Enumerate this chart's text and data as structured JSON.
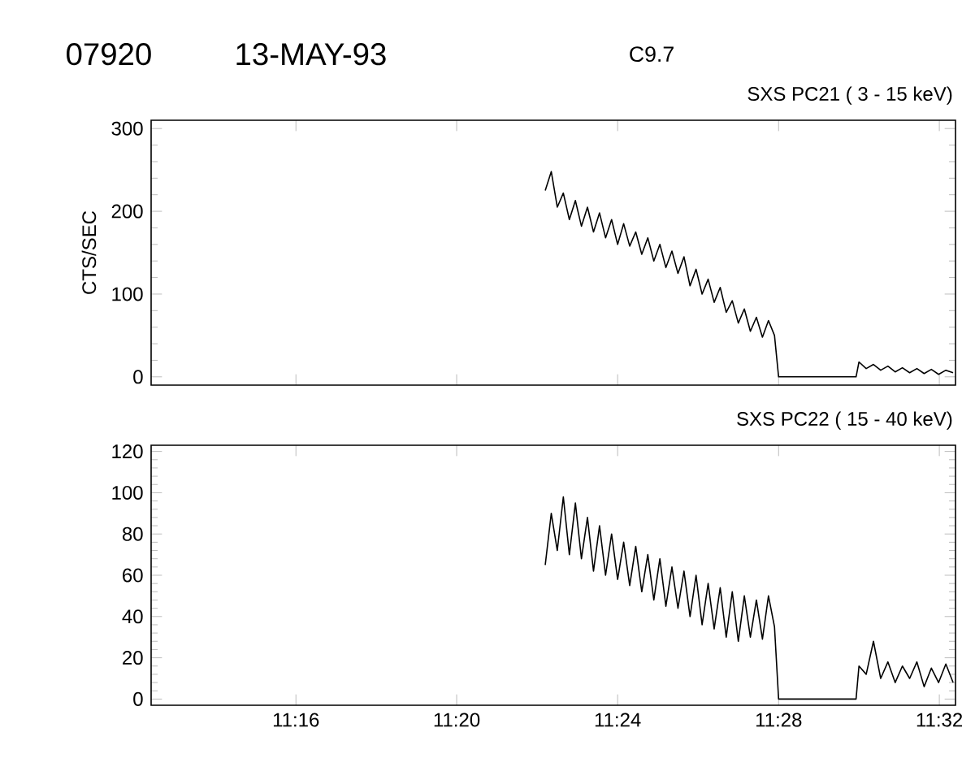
{
  "chart_data": [
    {
      "type": "line",
      "title": "SXS PC21  (  3 - 15 keV)",
      "ylabel": "CTS/SEC",
      "annotations": [
        "07920",
        "13-MAY-93",
        "C9.7"
      ],
      "xlim": [
        11.2067,
        11.54
      ],
      "ylim": [
        -10,
        310
      ],
      "xticks": [
        {
          "value": 11.2667,
          "label": null
        },
        {
          "value": 11.3333,
          "label": null
        },
        {
          "value": 11.4,
          "label": null
        },
        {
          "value": 11.4667,
          "label": null
        },
        {
          "value": 11.5333,
          "label": null
        }
      ],
      "yticks": [
        0,
        100,
        200,
        300
      ],
      "tick_labels": "y",
      "series": [
        {
          "color": "#000000",
          "x": [
            11.37,
            11.3725,
            11.375,
            11.3775,
            11.38,
            11.3825,
            11.385,
            11.3875,
            11.39,
            11.3925,
            11.395,
            11.3975,
            11.4,
            11.4025,
            11.405,
            11.4075,
            11.41,
            11.4125,
            11.415,
            11.4175,
            11.42,
            11.4225,
            11.425,
            11.4275,
            11.43,
            11.4325,
            11.435,
            11.4375,
            11.44,
            11.4425,
            11.445,
            11.4475,
            11.45,
            11.4525,
            11.455,
            11.4575,
            11.46,
            11.4625,
            11.465,
            11.4667,
            11.4988,
            11.5,
            11.503,
            11.506,
            11.509,
            11.512,
            11.515,
            11.518,
            11.521,
            11.524,
            11.527,
            11.53,
            11.533,
            11.536,
            11.539
          ],
          "values": [
            225,
            248,
            205,
            222,
            190,
            213,
            182,
            205,
            175,
            198,
            168,
            190,
            160,
            185,
            158,
            175,
            148,
            168,
            140,
            160,
            132,
            152,
            125,
            145,
            110,
            130,
            100,
            118,
            90,
            108,
            78,
            92,
            65,
            82,
            55,
            72,
            48,
            68,
            50,
            0,
            0,
            18,
            10,
            15,
            8,
            13,
            6,
            11,
            5,
            10,
            4,
            9,
            3,
            8,
            5
          ]
        }
      ]
    },
    {
      "type": "line",
      "title": "SXS PC22  ( 15 - 40 keV)",
      "xlim": [
        11.2067,
        11.54
      ],
      "ylim": [
        -3,
        123
      ],
      "xticks": [
        {
          "value": 11.2667,
          "label": "11:16"
        },
        {
          "value": 11.3333,
          "label": "11:20"
        },
        {
          "value": 11.4,
          "label": "11:24"
        },
        {
          "value": 11.4667,
          "label": "11:28"
        },
        {
          "value": 11.5333,
          "label": "11:32"
        }
      ],
      "yticks": [
        0,
        20,
        40,
        60,
        80,
        100,
        120
      ],
      "series": [
        {
          "color": "#000000",
          "x": [
            11.37,
            11.3725,
            11.375,
            11.3775,
            11.38,
            11.3825,
            11.385,
            11.3875,
            11.39,
            11.3925,
            11.395,
            11.3975,
            11.4,
            11.4025,
            11.405,
            11.4075,
            11.41,
            11.4125,
            11.415,
            11.4175,
            11.42,
            11.4225,
            11.425,
            11.4275,
            11.43,
            11.4325,
            11.435,
            11.4375,
            11.44,
            11.4425,
            11.445,
            11.4475,
            11.45,
            11.4525,
            11.455,
            11.4575,
            11.46,
            11.4625,
            11.465,
            11.4667,
            11.4988,
            11.5,
            11.503,
            11.506,
            11.509,
            11.512,
            11.515,
            11.518,
            11.521,
            11.524,
            11.527,
            11.53,
            11.533,
            11.536,
            11.539
          ],
          "values": [
            65,
            90,
            72,
            98,
            70,
            95,
            68,
            88,
            62,
            84,
            60,
            80,
            58,
            76,
            55,
            74,
            52,
            70,
            48,
            68,
            45,
            64,
            44,
            62,
            40,
            60,
            36,
            56,
            34,
            54,
            30,
            52,
            28,
            50,
            30,
            48,
            29,
            50,
            35,
            0,
            0,
            16,
            12,
            28,
            10,
            18,
            8,
            16,
            10,
            18,
            6,
            15,
            8,
            17,
            8
          ]
        }
      ]
    }
  ]
}
